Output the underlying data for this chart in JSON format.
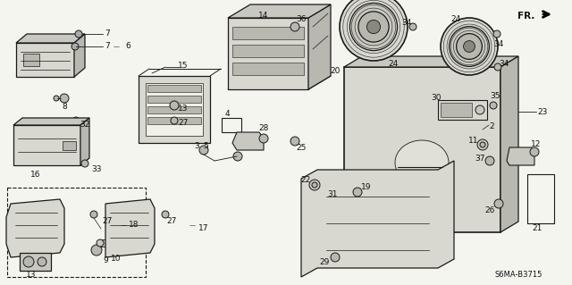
{
  "background_color": "#f5f5f0",
  "diagram_code": "S6MA-B3715",
  "figsize": [
    6.4,
    3.19
  ],
  "dpi": 100
}
